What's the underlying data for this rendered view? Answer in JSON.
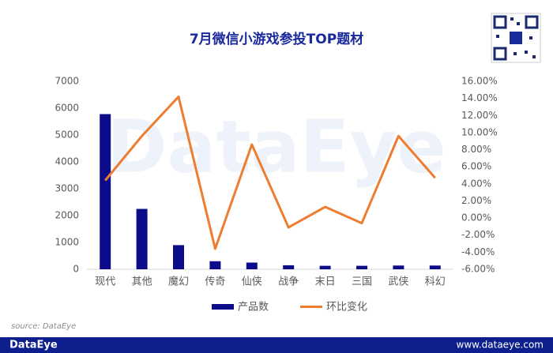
{
  "chart_data": {
    "type": "bar-line",
    "title": "7月微信小游戏参投TOP题材",
    "categories": [
      "现代",
      "其他",
      "魔幻",
      "传奇",
      "仙侠",
      "战争",
      "末日",
      "三国",
      "武侠",
      "科幻"
    ],
    "series": [
      {
        "name": "产品数",
        "color": "#0c0c8a",
        "type": "bar",
        "values": [
          5780,
          2250,
          900,
          300,
          250,
          150,
          130,
          130,
          140,
          140
        ]
      },
      {
        "name": "环比变化",
        "color": "#ed7d31",
        "type": "line",
        "axis": "y2",
        "values": [
          4.4,
          9.6,
          14.2,
          -3.6,
          8.6,
          -1.1,
          1.3,
          -0.6,
          9.6,
          4.7
        ]
      }
    ],
    "ylim": [
      0,
      7000
    ],
    "yticks": [
      0,
      1000,
      2000,
      3000,
      4000,
      5000,
      6000,
      7000
    ],
    "y2lim": [
      -6,
      16
    ],
    "y2ticks": [
      {
        "value": -6,
        "label": "-6.00%"
      },
      {
        "value": -4,
        "label": "-4.00%"
      },
      {
        "value": -2,
        "label": "-2.00%"
      },
      {
        "value": 0,
        "label": "0.00%"
      },
      {
        "value": 2,
        "label": "2.00%"
      },
      {
        "value": 4,
        "label": "4.00%"
      },
      {
        "value": 6,
        "label": "6.00%"
      },
      {
        "value": 8,
        "label": "8.00%"
      },
      {
        "value": 10,
        "label": "10.00%"
      },
      {
        "value": 12,
        "label": "12.00%"
      },
      {
        "value": 14,
        "label": "14.00%"
      },
      {
        "value": 16,
        "label": "16.00%"
      }
    ],
    "grid": false,
    "legend": "bottom"
  },
  "watermark": "DataEye",
  "source": "source: DataEye",
  "footer": {
    "logo": "DataEye",
    "url": "www.dataeye.com"
  }
}
